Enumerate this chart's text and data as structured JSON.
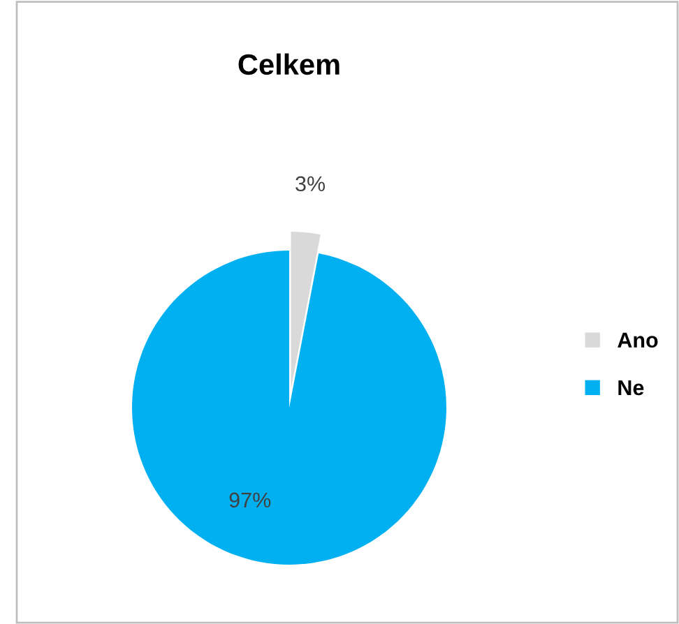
{
  "chart_data": {
    "type": "pie",
    "title": "Celkem",
    "categories": [
      "Ano",
      "Ne"
    ],
    "values": [
      3,
      97
    ],
    "colors": [
      "#d9d9d9",
      "#00b0f0"
    ],
    "value_labels": [
      "3%",
      "97%"
    ],
    "legend": "right"
  }
}
